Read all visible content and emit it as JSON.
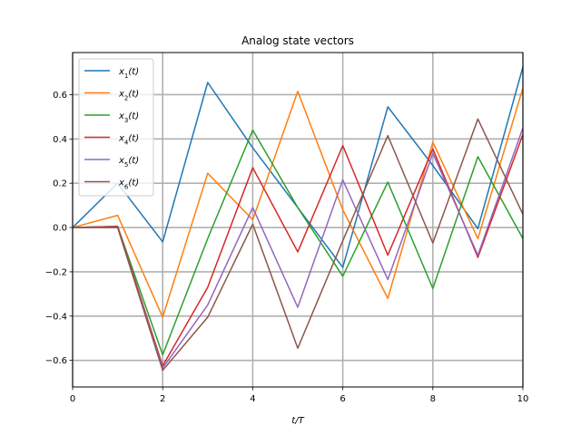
{
  "chart_data": {
    "type": "line",
    "title": "Analog state vectors",
    "xlabel": "t/T",
    "ylabel": "",
    "xlim": [
      0,
      10
    ],
    "ylim": [
      -0.72,
      0.79
    ],
    "xticks": [
      0,
      2,
      4,
      6,
      8,
      10
    ],
    "yticks": [
      -0.6,
      -0.4,
      -0.2,
      0.0,
      0.2,
      0.4,
      0.6
    ],
    "ytick_labels": [
      "−0.6",
      "−0.4",
      "−0.2",
      "0.0",
      "0.2",
      "0.4",
      "0.6"
    ],
    "grid": true,
    "legend_position": "top-left",
    "x": [
      0,
      1,
      2,
      3,
      4,
      5,
      6,
      7,
      8,
      9,
      10
    ],
    "series": [
      {
        "name": "x1(t)",
        "label_main": "x",
        "label_sub": "1",
        "label_tail": "(t)",
        "color": "#1f77b4",
        "values": [
          0.0,
          0.2,
          -0.065,
          0.655,
          0.36,
          0.09,
          -0.18,
          0.545,
          0.28,
          -0.005,
          0.725
        ]
      },
      {
        "name": "x2(t)",
        "label_main": "x",
        "label_sub": "2",
        "label_tail": "(t)",
        "color": "#ff7f0e",
        "values": [
          0.0,
          0.055,
          -0.405,
          0.245,
          0.035,
          0.615,
          0.08,
          -0.32,
          0.385,
          -0.05,
          0.63
        ]
      },
      {
        "name": "x3(t)",
        "label_main": "x",
        "label_sub": "3",
        "label_tail": "(t)",
        "color": "#2ca02c",
        "values": [
          0.0,
          0.005,
          -0.575,
          -0.05,
          0.44,
          0.09,
          -0.22,
          0.205,
          -0.275,
          0.32,
          -0.05
        ]
      },
      {
        "name": "x4(t)",
        "label_main": "x",
        "label_sub": "4",
        "label_tail": "(t)",
        "color": "#d62728",
        "values": [
          0.0,
          0.005,
          -0.625,
          -0.27,
          0.27,
          -0.11,
          0.37,
          -0.125,
          0.355,
          -0.135,
          0.42
        ]
      },
      {
        "name": "x5(t)",
        "label_main": "x",
        "label_sub": "5",
        "label_tail": "(t)",
        "color": "#9467bd",
        "values": [
          0.0,
          0.0,
          -0.635,
          -0.35,
          0.09,
          -0.36,
          0.215,
          -0.235,
          0.335,
          -0.125,
          0.45
        ]
      },
      {
        "name": "x6(t)",
        "label_main": "x",
        "label_sub": "6",
        "label_tail": "(t)",
        "color": "#8c564b",
        "values": [
          0.0,
          0.0,
          -0.645,
          -0.405,
          0.015,
          -0.545,
          -0.06,
          0.415,
          -0.07,
          0.49,
          0.06
        ]
      }
    ]
  }
}
